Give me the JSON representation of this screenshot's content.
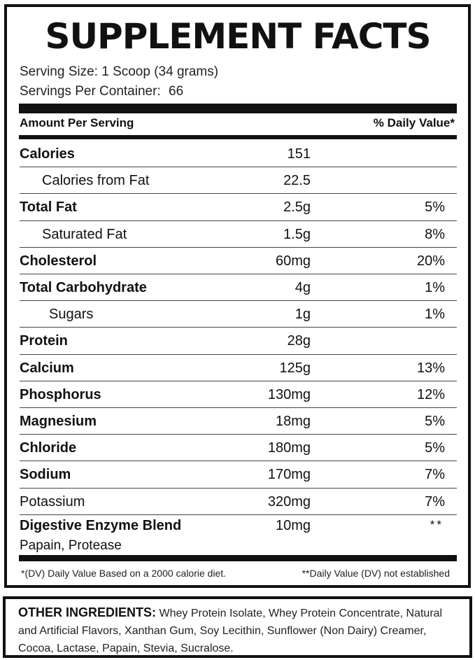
{
  "title": "SUPPLEMENT FACTS",
  "serving": {
    "size": "Serving Size: 1 Scoop (34 grams)",
    "per_container_label": "Servings Per Container:",
    "per_container_value": "66"
  },
  "header": {
    "amount_label": "Amount Per Serving",
    "dv_label": "% Daily Value*"
  },
  "rows": [
    {
      "name": "Calories",
      "amount": "151",
      "dv": ""
    },
    {
      "name": "Calories from Fat",
      "amount": "22.5",
      "dv": ""
    },
    {
      "name": "Total Fat",
      "amount": "2.5g",
      "dv": "5%"
    },
    {
      "name": "Saturated Fat",
      "amount": "1.5g",
      "dv": "8%"
    },
    {
      "name": "Cholesterol",
      "amount": "60mg",
      "dv": "20%"
    },
    {
      "name": "Total Carbohydrate",
      "amount": "4g",
      "dv": "1%"
    },
    {
      "name": "Sugars",
      "amount": "1g",
      "dv": "1%"
    },
    {
      "name": "Protein",
      "amount": "28g",
      "dv": ""
    },
    {
      "name": "Calcium",
      "amount": "125g",
      "dv": "13%"
    },
    {
      "name": "Phosphorus",
      "amount": "130mg",
      "dv": "12%"
    },
    {
      "name": "Magnesium",
      "amount": "18mg",
      "dv": "5%"
    },
    {
      "name": "Chloride",
      "amount": "180mg",
      "dv": "5%"
    },
    {
      "name": "Sodium",
      "amount": "170mg",
      "dv": "7%"
    },
    {
      "name": "Potassium",
      "amount": "320mg",
      "dv": "7%"
    }
  ],
  "enzyme": {
    "name": "Digestive Enzyme Blend",
    "components": "Papain, Protease",
    "amount": "10mg",
    "dv": "**"
  },
  "footnotes": {
    "left": "*(DV) Daily Value Based on a 2000 calorie diet.",
    "right": "**Daily Value (DV) not established"
  },
  "other_ingredients": {
    "label": "OTHER INGREDIENTS:",
    "text": "Whey Protein Isolate, Whey Protein Concentrate, Natural and Artificial Flavors, Xanthan Gum, Soy Lecithin, Sunflower (Non Dairy) Creamer, Cocoa, Lactase, Papain, Stevia, Sucralose."
  }
}
